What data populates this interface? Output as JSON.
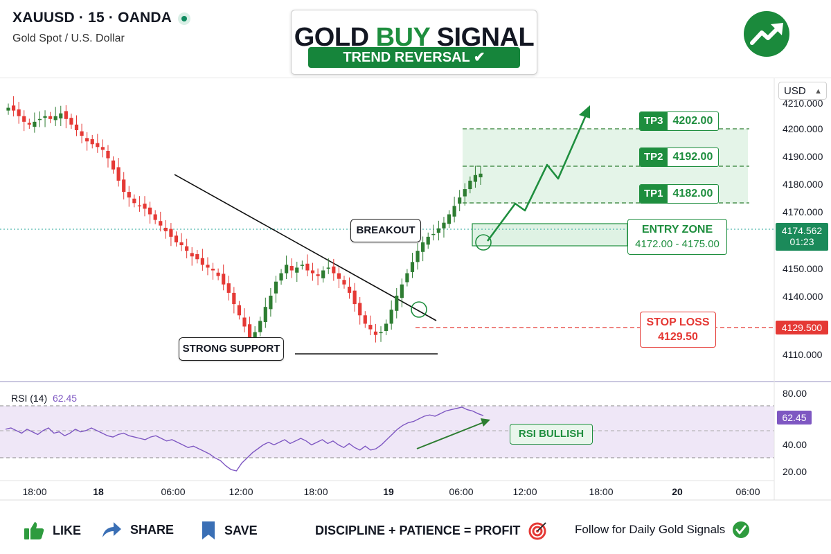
{
  "header": {
    "symbol": "XAUUSD · 15 · OANDA",
    "subtitle": "Gold Spot / U.S. Dollar"
  },
  "title": {
    "prefix": "GOLD ",
    "highlight": "BUY",
    "suffix": " SIGNAL",
    "badge": "TREND REVERSAL ✔"
  },
  "currency_select": {
    "value": "USD"
  },
  "annotations": {
    "breakout": "BREAKOUT",
    "strong_support": "STRONG SUPPORT",
    "entry_title": "ENTRY ZONE",
    "entry_range": "4172.00 - 4175.00",
    "stop_loss_title": "STOP LOSS",
    "stop_loss_value": "4129.50",
    "rsi_bullish": "RSI BULLISH"
  },
  "targets": [
    {
      "label": "TP3",
      "value": "4202.00",
      "level": 4202
    },
    {
      "label": "TP2",
      "value": "4192.00",
      "level": 4192
    },
    {
      "label": "TP1",
      "value": "4182.00",
      "level": 4182
    }
  ],
  "price_tags": {
    "current_price": "4174.562",
    "countdown": "01:23",
    "stop_loss": "4129.500",
    "rsi": "62.45"
  },
  "rsi": {
    "label": "RSI (14)",
    "value": "62.45"
  },
  "footer": {
    "like": "LIKE",
    "share": "SHARE",
    "save": "SAVE",
    "slogan": "DISCIPLINE + PATIENCE = PROFIT",
    "follow": "Follow for Daily Gold Signals"
  },
  "colors": {
    "bull": "#26a69a",
    "bull_candle": "#2e7d32",
    "bear": "#e53935",
    "signal_green": "#1e8e3e",
    "rsi_line": "#7e57c2",
    "rsi_band": "#efe7f7",
    "zone_fill": "#dff2e4"
  },
  "chart_data": [
    {
      "type": "candlestick",
      "title": "",
      "y_axis": {
        "ticks": [
          4110,
          4140,
          4150,
          4170,
          4180,
          4190,
          4200,
          4210
        ],
        "tick_labels": [
          "4110.000",
          "4140.000",
          "4150.000",
          "4170.000",
          "4180.000",
          "4190.000",
          "4200.000",
          "4210.000"
        ]
      },
      "x_axis": {
        "tick_labels": [
          "18:00",
          "18",
          "06:00",
          "12:00",
          "18:00",
          "19",
          "06:00",
          "12:00",
          "18:00",
          "20",
          "06:00"
        ]
      },
      "levels": {
        "tp1": 4182,
        "tp2": 4192,
        "tp3": 4202,
        "entry_low": 4172,
        "entry_high": 4175,
        "stop_loss": 4129.5,
        "current": 4174.562,
        "support": 4110
      },
      "close_path": [
        4198,
        4197,
        4195,
        4193,
        4192,
        4193,
        4194,
        4195,
        4194,
        4195,
        4196,
        4194,
        4192,
        4190,
        4188,
        4186,
        4185,
        4184,
        4183,
        4180,
        4176,
        4172,
        4168,
        4166,
        4164,
        4163,
        4162,
        4160,
        4158,
        4156,
        4154,
        4152,
        4150,
        4149,
        4147,
        4145,
        4144,
        4142,
        4141,
        4140,
        4138,
        4135,
        4132,
        4128,
        4124,
        4120,
        4115,
        4118,
        4122,
        4127,
        4131,
        4136,
        4139,
        4142,
        4140,
        4141,
        4142,
        4140,
        4139,
        4138,
        4140,
        4141,
        4139,
        4137,
        4135,
        4132,
        4128,
        4124,
        4121,
        4119,
        4117,
        4118,
        4121,
        4126,
        4131,
        4135,
        4139,
        4143,
        4147,
        4150,
        4152,
        4153,
        4155,
        4157,
        4160,
        4163,
        4166,
        4169,
        4172,
        4174,
        4174.5
      ]
    },
    {
      "type": "line",
      "title": "RSI (14)",
      "y_axis": {
        "ticks": [
          20,
          40,
          80
        ],
        "tick_labels": [
          "20.00",
          "40.00",
          "80.00"
        ],
        "levels": [
          70,
          50,
          30
        ]
      },
      "series": [
        {
          "values": [
            52,
            53,
            51,
            49,
            52,
            50,
            48,
            51,
            53,
            49,
            50,
            47,
            49,
            52,
            50,
            51,
            53,
            51,
            49,
            47,
            46,
            48,
            49,
            47,
            46,
            45,
            44,
            46,
            47,
            45,
            43,
            44,
            42,
            40,
            38,
            39,
            37,
            35,
            33,
            30,
            28,
            24,
            21,
            20,
            26,
            30,
            34,
            37,
            40,
            42,
            40,
            42,
            44,
            41,
            43,
            45,
            43,
            40,
            42,
            44,
            41,
            43,
            40,
            38,
            41,
            38,
            36,
            39,
            36,
            37,
            40,
            44,
            48,
            52,
            55,
            57,
            58,
            60,
            62,
            63,
            62,
            64,
            66,
            67,
            68,
            69,
            67,
            66,
            64,
            62.45
          ]
        }
      ]
    }
  ]
}
